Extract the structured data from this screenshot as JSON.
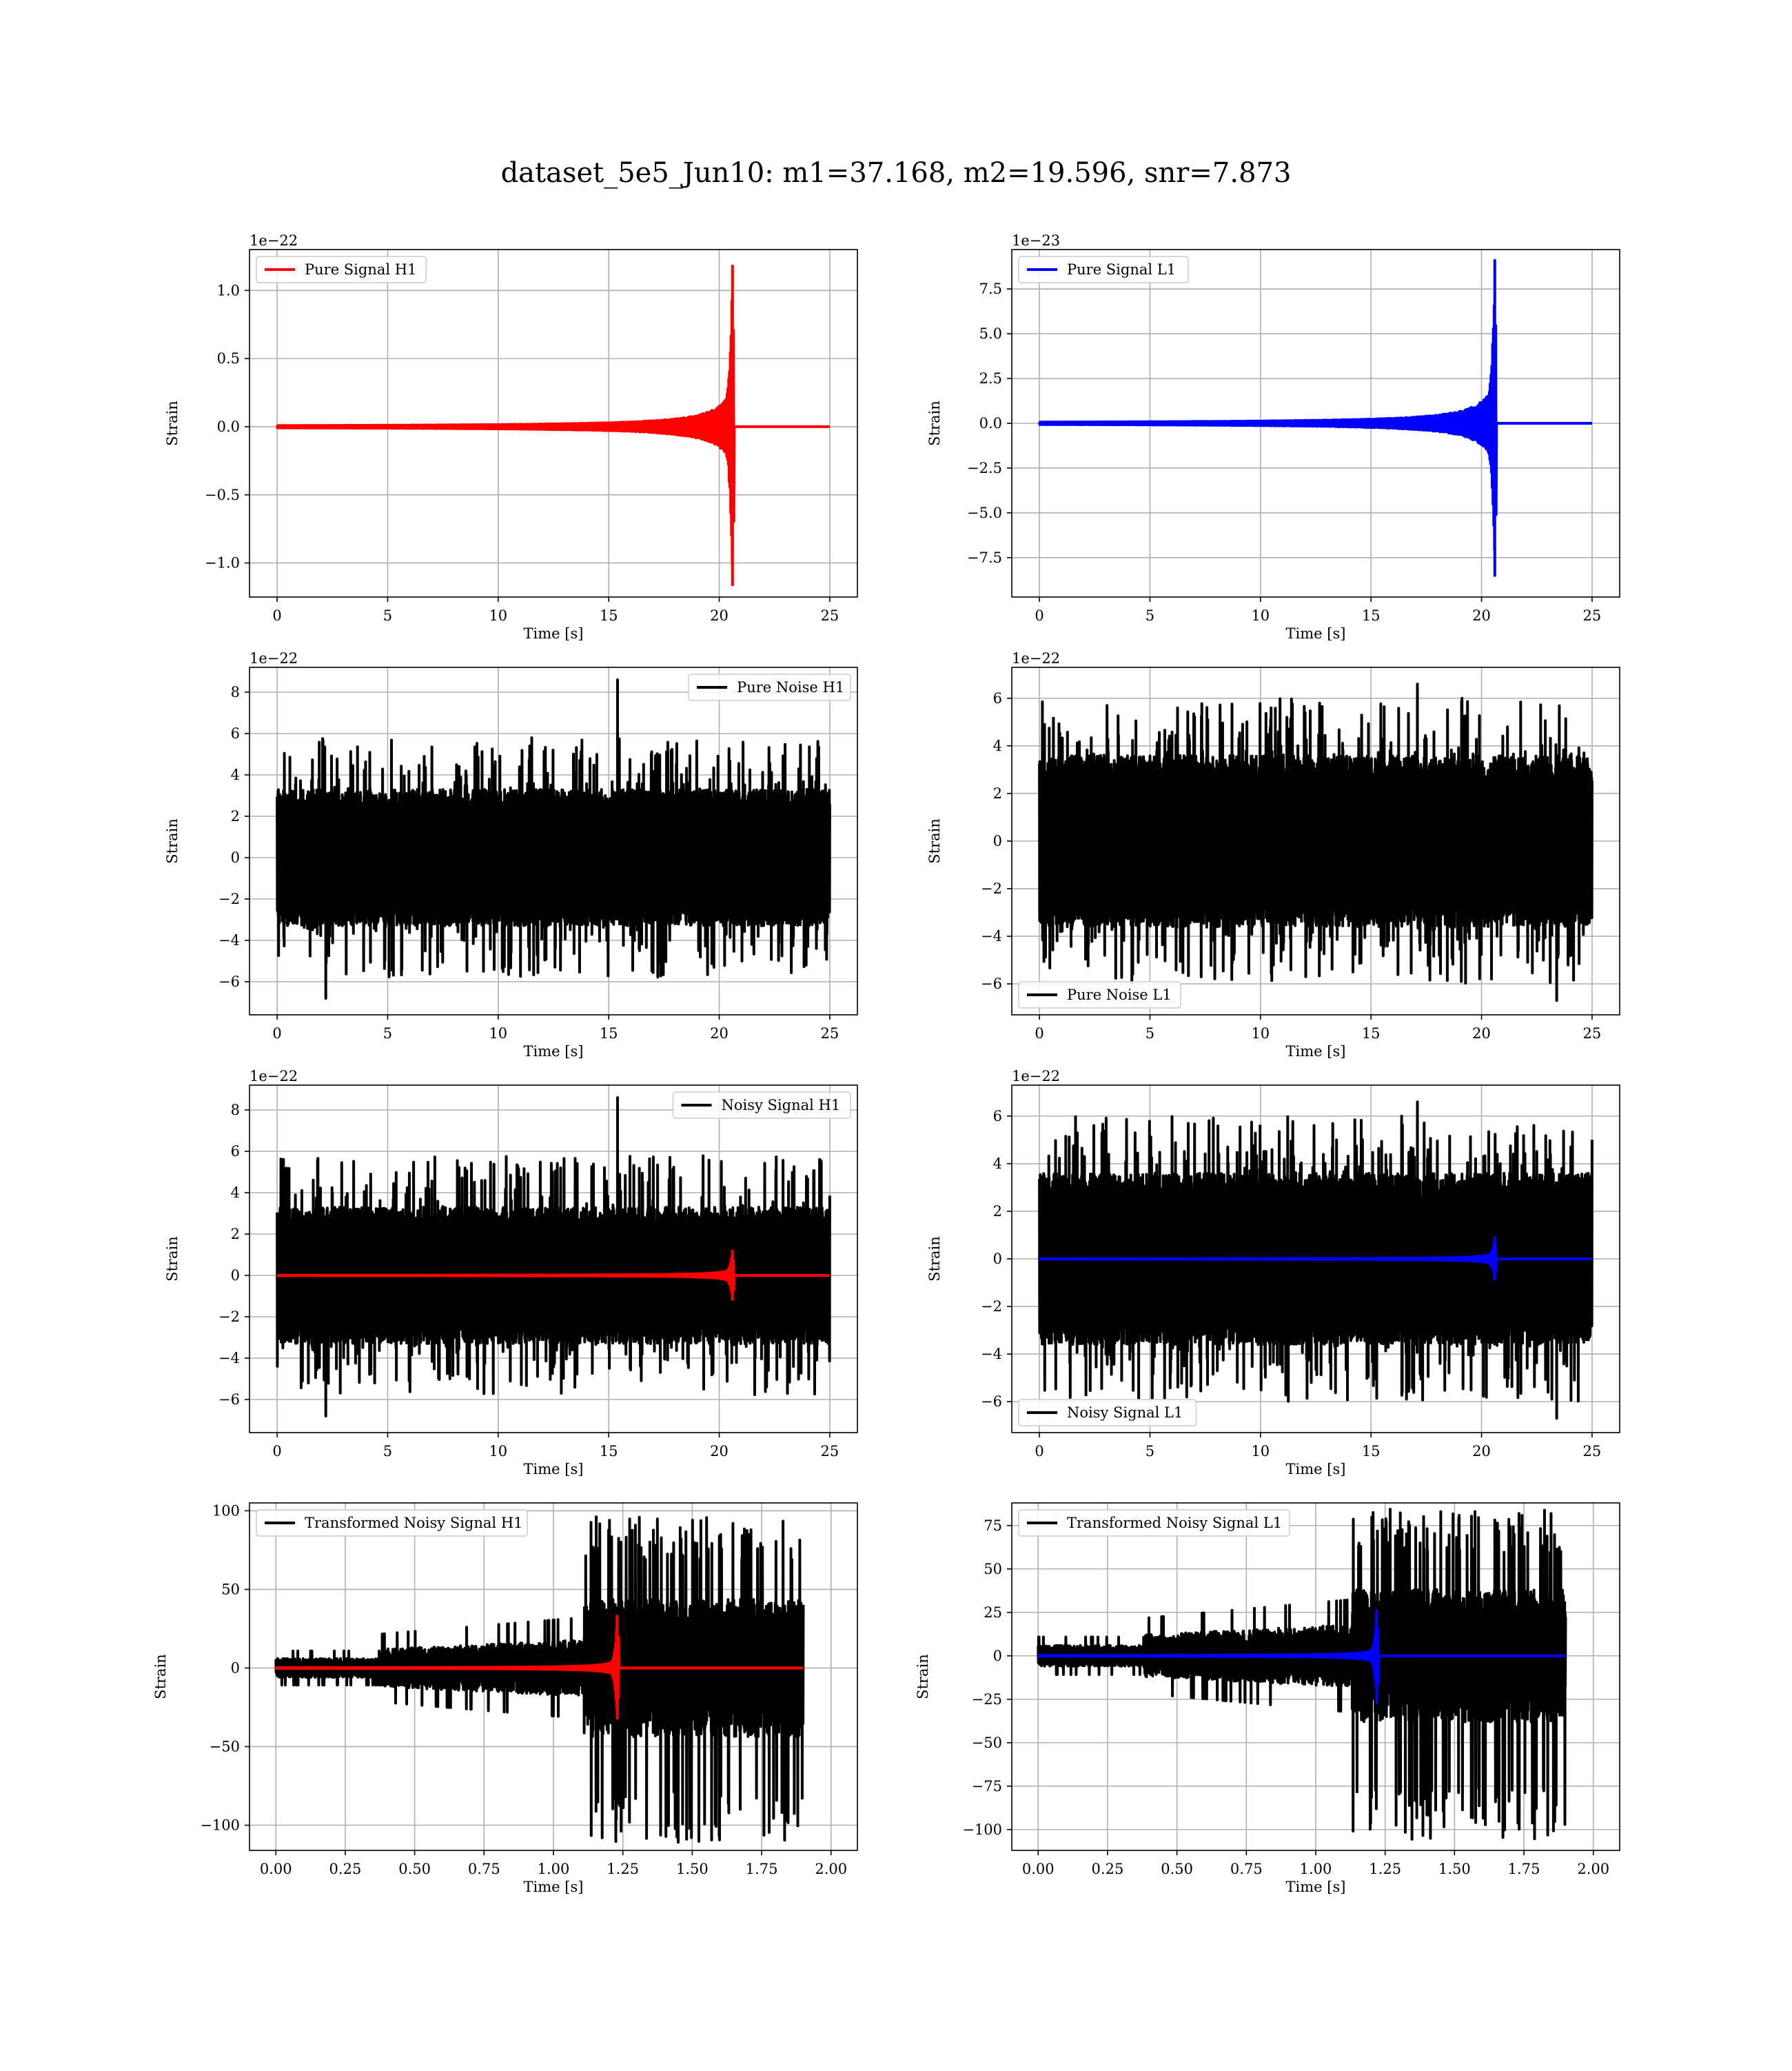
{
  "figure": {
    "title": "dataset_5e5_Jun10: m1=37.168, m2=19.596, snr=7.873"
  },
  "chart_data": [
    {
      "id": "pure-signal-h1",
      "type": "line",
      "xlabel": "Time [s]",
      "ylabel": "Strain",
      "offset_label": "1e−22",
      "xlim": [
        -1.25,
        26.25
      ],
      "ylim": [
        -1.25,
        1.3
      ],
      "xticks": [
        0,
        5,
        10,
        15,
        20,
        25
      ],
      "xtick_labels": [
        "0",
        "5",
        "10",
        "15",
        "20",
        "25"
      ],
      "yticks": [
        -1.0,
        -0.5,
        0.0,
        0.5,
        1.0
      ],
      "ytick_labels": [
        "−1.0",
        "−0.5",
        "0.0",
        "0.5",
        "1.0"
      ],
      "grid": true,
      "legend_position": "top-left",
      "series": [
        {
          "name": "Pure Signal H1",
          "color": "#ff0000",
          "kind": "chirp",
          "t_start": 0,
          "t_end": 25,
          "merger_time": 20.6,
          "plateau_amp": 0.3,
          "peak_amp": 1.18,
          "min_amp": -1.16
        }
      ]
    },
    {
      "id": "pure-signal-l1",
      "type": "line",
      "xlabel": "Time [s]",
      "ylabel": "Strain",
      "offset_label": "1e−23",
      "xlim": [
        -1.25,
        26.25
      ],
      "ylim": [
        -9.7,
        9.7
      ],
      "xticks": [
        0,
        5,
        10,
        15,
        20,
        25
      ],
      "xtick_labels": [
        "0",
        "5",
        "10",
        "15",
        "20",
        "25"
      ],
      "yticks": [
        -7.5,
        -5.0,
        -2.5,
        0.0,
        2.5,
        5.0,
        7.5
      ],
      "ytick_labels": [
        "−7.5",
        "−5.0",
        "−2.5",
        "0.0",
        "2.5",
        "5.0",
        "7.5"
      ],
      "grid": true,
      "legend_position": "top-left",
      "series": [
        {
          "name": "Pure Signal L1",
          "color": "#0000ff",
          "kind": "chirp",
          "t_start": 0,
          "t_end": 25,
          "merger_time": 20.6,
          "plateau_amp": 2.4,
          "peak_amp": 9.1,
          "min_amp": -8.5
        }
      ]
    },
    {
      "id": "pure-noise-h1",
      "type": "line",
      "xlabel": "Time [s]",
      "ylabel": "Strain",
      "offset_label": "1e−22",
      "xlim": [
        -1.25,
        26.25
      ],
      "ylim": [
        -7.6,
        9.2
      ],
      "xticks": [
        0,
        5,
        10,
        15,
        20,
        25
      ],
      "xtick_labels": [
        "0",
        "5",
        "10",
        "15",
        "20",
        "25"
      ],
      "yticks": [
        -6,
        -4,
        -2,
        0,
        2,
        4,
        6,
        8
      ],
      "ytick_labels": [
        "−6",
        "−4",
        "−2",
        "0",
        "2",
        "4",
        "6",
        "8"
      ],
      "grid": true,
      "legend_position": "top-right",
      "series": [
        {
          "name": "Pure Noise H1",
          "color": "#000000",
          "kind": "noise",
          "t_start": 0,
          "t_end": 25,
          "core_amp": 3.3,
          "spike_max": 5.8,
          "spike_min": -5.8,
          "extreme_high": {
            "t": 15.4,
            "v": 8.6
          },
          "extreme_low": {
            "t": 2.2,
            "v": -6.8
          }
        }
      ]
    },
    {
      "id": "pure-noise-l1",
      "type": "line",
      "xlabel": "Time [s]",
      "ylabel": "Strain",
      "offset_label": "1e−22",
      "xlim": [
        -1.25,
        26.25
      ],
      "ylim": [
        -7.3,
        7.3
      ],
      "xticks": [
        0,
        5,
        10,
        15,
        20,
        25
      ],
      "xtick_labels": [
        "0",
        "5",
        "10",
        "15",
        "20",
        "25"
      ],
      "yticks": [
        -6,
        -4,
        -2,
        0,
        2,
        4,
        6
      ],
      "ytick_labels": [
        "−6",
        "−4",
        "−2",
        "0",
        "2",
        "4",
        "6"
      ],
      "grid": true,
      "legend_position": "bottom-left",
      "series": [
        {
          "name": "Pure Noise L1",
          "color": "#000000",
          "kind": "noise",
          "t_start": 0,
          "t_end": 25,
          "core_amp": 3.6,
          "spike_max": 6.0,
          "spike_min": -6.0,
          "extreme_high": {
            "t": 17.1,
            "v": 6.6
          },
          "extreme_low": {
            "t": 23.4,
            "v": -6.7
          }
        }
      ]
    },
    {
      "id": "noisy-signal-h1",
      "type": "line",
      "xlabel": "Time [s]",
      "ylabel": "Strain",
      "offset_label": "1e−22",
      "xlim": [
        -1.25,
        26.25
      ],
      "ylim": [
        -7.6,
        9.2
      ],
      "xticks": [
        0,
        5,
        10,
        15,
        20,
        25
      ],
      "xtick_labels": [
        "0",
        "5",
        "10",
        "15",
        "20",
        "25"
      ],
      "yticks": [
        -6,
        -4,
        -2,
        0,
        2,
        4,
        6,
        8
      ],
      "ytick_labels": [
        "−6",
        "−4",
        "−2",
        "0",
        "2",
        "4",
        "6",
        "8"
      ],
      "grid": true,
      "legend_position": "top-right",
      "series": [
        {
          "name": "Noisy Signal H1",
          "color": "#000000",
          "kind": "noise",
          "t_start": 0,
          "t_end": 25,
          "core_amp": 3.3,
          "spike_max": 5.8,
          "spike_min": -5.8,
          "extreme_high": {
            "t": 15.4,
            "v": 8.6
          },
          "extreme_low": {
            "t": 2.2,
            "v": -6.8
          }
        },
        {
          "color": "#ff0000",
          "kind": "chirp",
          "t_start": 0,
          "t_end": 25,
          "merger_time": 20.6,
          "plateau_amp": 0.3,
          "peak_amp": 1.18,
          "min_amp": -1.16
        }
      ]
    },
    {
      "id": "noisy-signal-l1",
      "type": "line",
      "xlabel": "Time [s]",
      "ylabel": "Strain",
      "offset_label": "1e−22",
      "xlim": [
        -1.25,
        26.25
      ],
      "ylim": [
        -7.3,
        7.3
      ],
      "xticks": [
        0,
        5,
        10,
        15,
        20,
        25
      ],
      "xtick_labels": [
        "0",
        "5",
        "10",
        "15",
        "20",
        "25"
      ],
      "yticks": [
        -6,
        -4,
        -2,
        0,
        2,
        4,
        6
      ],
      "ytick_labels": [
        "−6",
        "−4",
        "−2",
        "0",
        "2",
        "4",
        "6"
      ],
      "grid": true,
      "legend_position": "bottom-left",
      "series": [
        {
          "name": "Noisy Signal L1",
          "color": "#000000",
          "kind": "noise",
          "t_start": 0,
          "t_end": 25,
          "core_amp": 3.6,
          "spike_max": 6.0,
          "spike_min": -6.0,
          "extreme_high": {
            "t": 17.1,
            "v": 6.6
          },
          "extreme_low": {
            "t": 23.4,
            "v": -6.7
          }
        },
        {
          "color": "#0000ff",
          "kind": "chirp",
          "t_start": 0,
          "t_end": 25,
          "merger_time": 20.6,
          "plateau_amp": 0.24,
          "peak_amp": 0.91,
          "min_amp": -0.85
        }
      ]
    },
    {
      "id": "transformed-noisy-signal-h1",
      "type": "line",
      "xlabel": "Time [s]",
      "ylabel": "Strain",
      "offset_label": "",
      "xlim": [
        -0.095,
        2.095
      ],
      "ylim": [
        -116,
        105
      ],
      "xticks": [
        0.0,
        0.25,
        0.5,
        0.75,
        1.0,
        1.25,
        1.5,
        1.75,
        2.0
      ],
      "xtick_labels": [
        "0.00",
        "0.25",
        "0.50",
        "0.75",
        "1.00",
        "1.25",
        "1.50",
        "1.75",
        "2.00"
      ],
      "yticks": [
        -100,
        -50,
        0,
        50,
        100
      ],
      "ytick_labels": [
        "−100",
        "−50",
        "0",
        "50",
        "100"
      ],
      "grid": true,
      "legend_position": "top-left",
      "series": [
        {
          "name": "Transformed Noisy Signal H1",
          "color": "#000000",
          "kind": "whitened",
          "t_start": 0,
          "t_end": 1.9,
          "jump_time": 1.11,
          "early_amp": 6,
          "mid_amp": 12,
          "late_peak_max": 97,
          "late_peak_min": -112
        },
        {
          "color": "#ff0000",
          "kind": "chirp",
          "t_start": 0,
          "t_end": 1.9,
          "merger_time": 1.23,
          "plateau_amp": 5,
          "peak_amp": 33,
          "min_amp": -32
        }
      ]
    },
    {
      "id": "transformed-noisy-signal-l1",
      "type": "line",
      "xlabel": "Time [s]",
      "ylabel": "Strain",
      "offset_label": "",
      "xlim": [
        -0.095,
        2.095
      ],
      "ylim": [
        -112,
        88
      ],
      "xticks": [
        0.0,
        0.25,
        0.5,
        0.75,
        1.0,
        1.25,
        1.5,
        1.75,
        2.0
      ],
      "xtick_labels": [
        "0.00",
        "0.25",
        "0.50",
        "0.75",
        "1.00",
        "1.25",
        "1.50",
        "1.75",
        "2.00"
      ],
      "yticks": [
        -100,
        -75,
        -50,
        -25,
        0,
        25,
        50,
        75
      ],
      "ytick_labels": [
        "−100",
        "−75",
        "−50",
        "−25",
        "0",
        "25",
        "50",
        "75"
      ],
      "grid": true,
      "legend_position": "top-left",
      "series": [
        {
          "name": "Transformed Noisy Signal L1",
          "color": "#000000",
          "kind": "whitened",
          "t_start": 0,
          "t_end": 1.9,
          "jump_time": 1.13,
          "early_amp": 6,
          "mid_amp": 12,
          "late_peak_max": 85,
          "late_peak_min": -106
        },
        {
          "color": "#0000ff",
          "kind": "chirp",
          "t_start": 0,
          "t_end": 1.9,
          "merger_time": 1.22,
          "plateau_amp": 4,
          "peak_amp": 26,
          "min_amp": -27
        }
      ]
    }
  ]
}
